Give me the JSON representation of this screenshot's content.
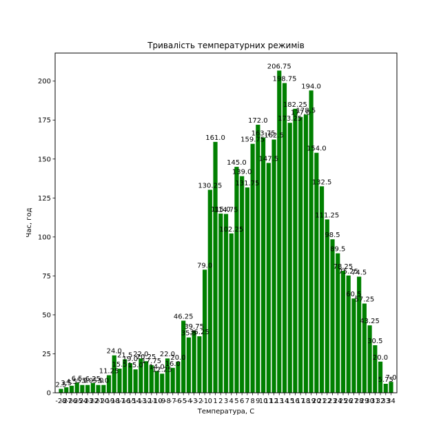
{
  "chart_data": {
    "type": "bar",
    "title": "Тривалість температурних режимів",
    "xlabel": "Температура, С",
    "ylabel": "Час, год",
    "ylim": [
      0,
      218
    ],
    "yticks": [
      0,
      25,
      50,
      75,
      100,
      125,
      150,
      175,
      200
    ],
    "color": "#008000",
    "grid": false,
    "categories": [
      "-28",
      "-27",
      "-26",
      "-25",
      "-24",
      "-23",
      "-22",
      "-21",
      "-20",
      "-19",
      "-18",
      "-17",
      "-16",
      "-15",
      "-14",
      "-13",
      "-12",
      "-11",
      "-10",
      "-9",
      "-8",
      "-7",
      "-6",
      "-5",
      "-4",
      "-3",
      "-2",
      "-1",
      "0",
      "1",
      "2",
      "3",
      "4",
      "5",
      "6",
      "7",
      "8",
      "9",
      "10",
      "11",
      "12",
      "13",
      "14",
      "15",
      "16",
      "17",
      "18",
      "19",
      "20",
      "21",
      "22",
      "23",
      "24",
      "25",
      "26",
      "27",
      "28",
      "29",
      "30",
      "31",
      "32",
      "33",
      "34"
    ],
    "tick_labels": [
      "-28",
      "-27",
      "-26",
      "-25",
      "-24",
      "-23",
      "-22",
      "-21",
      "-20",
      "-19",
      "-18",
      "-17",
      "-16",
      "-15",
      "-14",
      "-13",
      "-12",
      "-11",
      "-10",
      "-9",
      "-8",
      "-7",
      "-6",
      "-5",
      "-4",
      "-3",
      "-2",
      "-1",
      "0",
      "1",
      "2",
      "3",
      "4",
      "5",
      "6",
      "7",
      "8",
      "9",
      "10",
      "11",
      "12",
      "13",
      "14",
      "15",
      "16",
      "17",
      "18",
      "19",
      "20",
      "21",
      "22",
      "23",
      "24",
      "25",
      "26",
      "27",
      "28",
      "29",
      "30",
      "31",
      "32",
      "33",
      "34"
    ],
    "values": [
      2.5,
      3.5,
      4.5,
      6.5,
      5.0,
      5.0,
      6.25,
      5.0,
      5.0,
      11.25,
      24.0,
      15.5,
      21.5,
      19.0,
      15.0,
      22.0,
      20.25,
      17.75,
      14.0,
      12.25,
      22.0,
      16.0,
      20.0,
      46.25,
      35.5,
      39.75,
      36.25,
      79.0,
      130.25,
      161.0,
      115.0,
      114.75,
      102.25,
      145.0,
      139.0,
      131.75,
      159.75,
      172.0,
      163.75,
      147.5,
      162.5,
      206.75,
      198.75,
      173.25,
      182.25,
      177.0,
      178.5,
      194.0,
      154.0,
      132.5,
      111.25,
      98.5,
      89.5,
      78.25,
      75.25,
      60.5,
      74.5,
      57.25,
      43.25,
      30.5,
      20.0,
      5.75,
      7.0
    ],
    "labels": [
      "2.5",
      "3.5",
      "4.5",
      "6.5",
      "5.0",
      "5.0",
      "6.25",
      "5.0",
      "5.0",
      "11.25",
      "24.0",
      "15.5",
      "21.5",
      "19.0",
      "15.0",
      "22.0",
      "20.25",
      "17.75",
      "14.0",
      "12.25",
      "22.0",
      "16.0",
      "20.0",
      "46.25",
      "35.5",
      "39.75",
      "36.25",
      "79.0",
      "130.25",
      "161.0",
      "115.0",
      "114.75",
      "102.25",
      "145.0",
      "139.0",
      "131.75",
      "159.75",
      "172.0",
      "163.75",
      "147.5",
      "162.5",
      "206.75",
      "198.75",
      "173.25",
      "182.25",
      "177.0",
      "178.5",
      "194.0",
      "154.0",
      "132.5",
      "111.25",
      "98.5",
      "89.5",
      "78.25",
      "75.25",
      "60.5",
      "74.5",
      "57.25",
      "43.25",
      "30.5",
      "20.0",
      "5.75",
      "7.0"
    ]
  }
}
